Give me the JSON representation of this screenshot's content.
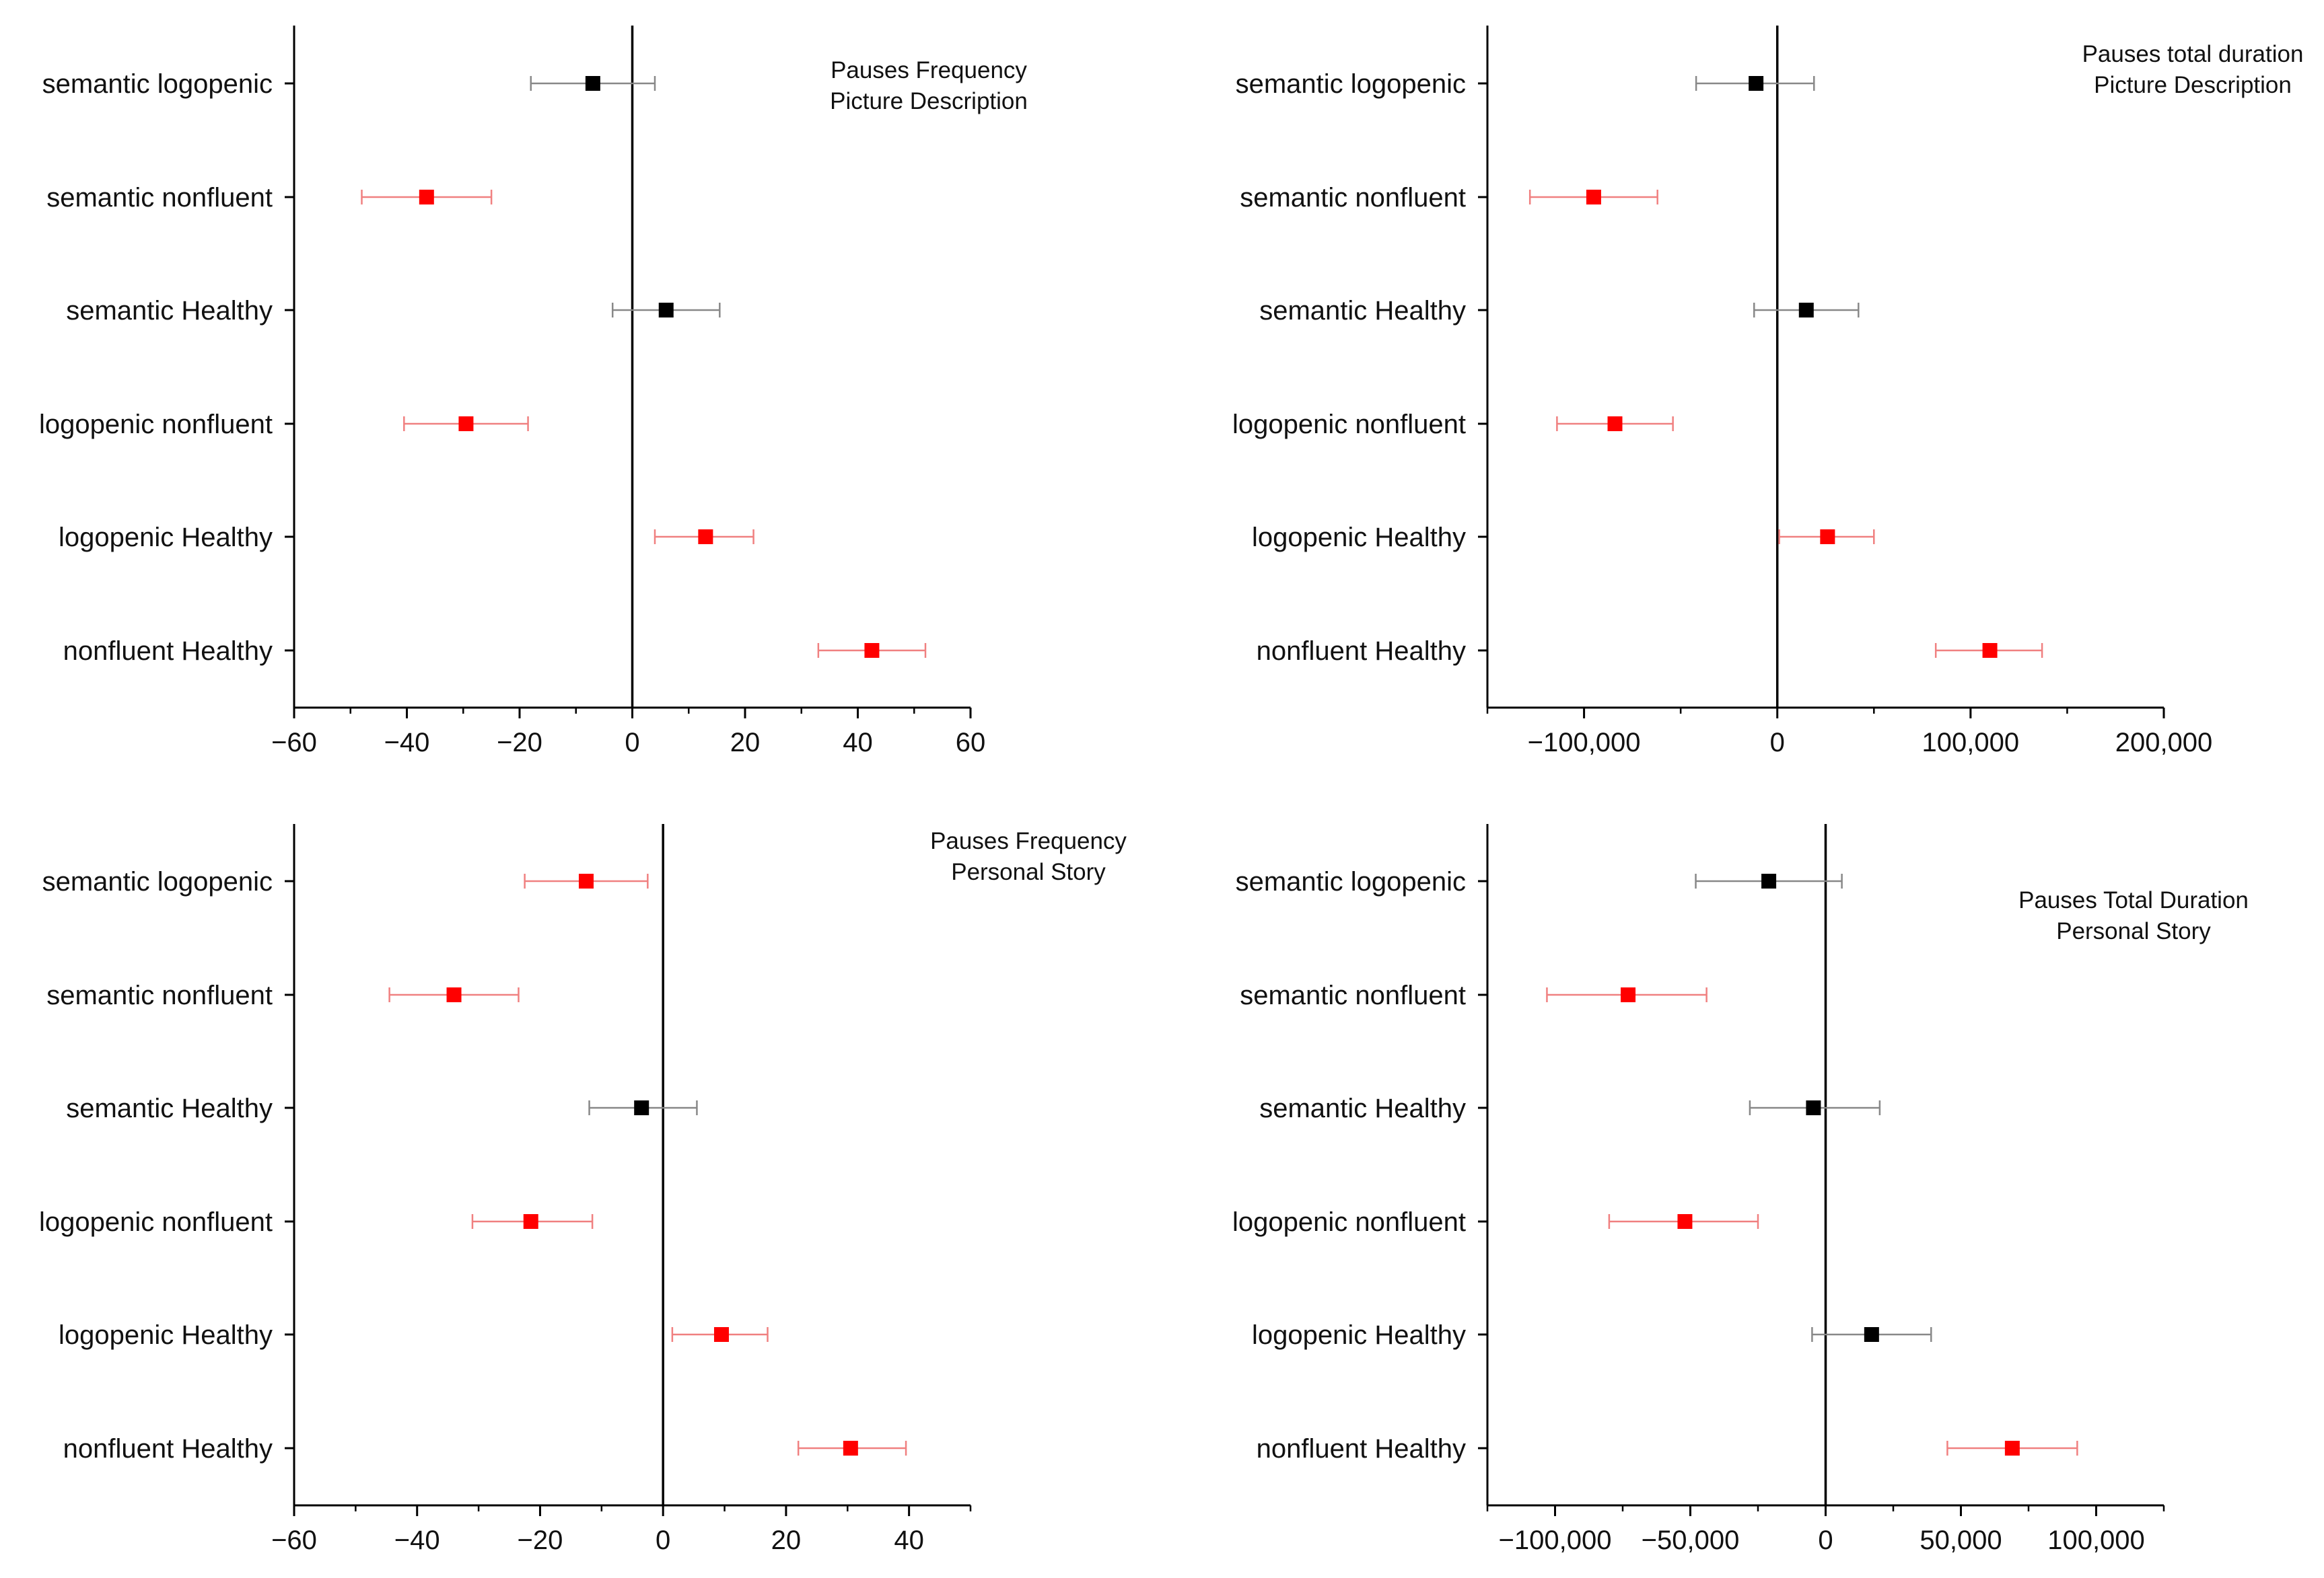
{
  "chart_data": [
    {
      "type": "forest",
      "title": [
        "Pauses Frequency",
        "Picture Description"
      ],
      "title_position": "top-right",
      "xlim": [
        -60,
        60
      ],
      "xticks": [
        -60,
        -40,
        -20,
        0,
        20,
        40,
        60
      ],
      "xtick_labels": [
        "−60",
        "−40",
        "−20",
        "0",
        "20",
        "40",
        "60"
      ],
      "reference_line": 0,
      "categories": [
        "semantic  logopenic",
        "semantic  nonfluent",
        "semantic  Healthy",
        "logopenic  nonfluent",
        "logopenic  Healthy",
        "nonfluent  Healthy"
      ],
      "estimates": [
        -7,
        -36.5,
        6,
        -29.5,
        13,
        42.5
      ],
      "ci_low": [
        -18,
        -48,
        -3.5,
        -40.5,
        4,
        33
      ],
      "ci_high": [
        4,
        -25,
        15.5,
        -18.5,
        21.5,
        52
      ],
      "significant": [
        false,
        true,
        false,
        true,
        true,
        true
      ]
    },
    {
      "type": "forest",
      "title": [
        "Pauses total duration",
        "Picture Description"
      ],
      "title_position": "top-right",
      "xlim": [
        -150000,
        200000
      ],
      "xticks": [
        -100000,
        0,
        100000,
        200000
      ],
      "xtick_labels": [
        "−100,000",
        "0",
        "100,000",
        "200,000"
      ],
      "reference_line": 0,
      "categories": [
        "semantic  logopenic",
        "semantic  nonfluent",
        "semantic  Healthy",
        "logopenic  nonfluent",
        "logopenic  Healthy",
        "nonfluent  Healthy"
      ],
      "estimates": [
        -11000,
        -95000,
        15000,
        -84000,
        26000,
        110000
      ],
      "ci_low": [
        -42000,
        -128000,
        -12000,
        -114000,
        1000,
        82000
      ],
      "ci_high": [
        19000,
        -62000,
        42000,
        -54000,
        50000,
        137000
      ],
      "significant": [
        false,
        true,
        false,
        true,
        true,
        true
      ]
    },
    {
      "type": "forest",
      "title": [
        "Pauses Frequency",
        "Personal Story"
      ],
      "title_position": "top-right",
      "xlim": [
        -60,
        50
      ],
      "xticks": [
        -60,
        -40,
        -20,
        0,
        20,
        40
      ],
      "xtick_labels": [
        "−60",
        "−40",
        "−20",
        "0",
        "20",
        "40"
      ],
      "reference_line": 0,
      "categories": [
        "semantic  logopenic",
        "semantic  nonfluent",
        "semantic  Healthy",
        "logopenic  nonfluent",
        "logopenic  Healthy",
        "nonfluent  Healthy"
      ],
      "estimates": [
        -12.5,
        -34,
        -3.5,
        -21.5,
        9.5,
        30.5
      ],
      "ci_low": [
        -22.5,
        -44.5,
        -12,
        -31,
        1.5,
        22
      ],
      "ci_high": [
        -2.5,
        -23.5,
        5.5,
        -11.5,
        17,
        39.5
      ],
      "significant": [
        true,
        true,
        false,
        true,
        true,
        true
      ]
    },
    {
      "type": "forest",
      "title": [
        "Pauses Total Duration",
        "Personal Story"
      ],
      "title_position": "top-right",
      "xlim": [
        -125000,
        125000
      ],
      "xticks": [
        -100000,
        -50000,
        0,
        50000,
        100000
      ],
      "xtick_labels": [
        "−100,000",
        "−50,000",
        "0",
        "50,000",
        "100,000"
      ],
      "reference_line": 0,
      "categories": [
        "semantic  logopenic",
        "semantic  nonfluent",
        "semantic  Healthy",
        "logopenic  nonfluent",
        "logopenic  Healthy",
        "nonfluent  Healthy"
      ],
      "estimates": [
        -21000,
        -73000,
        -4500,
        -52000,
        17000,
        69000
      ],
      "ci_low": [
        -48000,
        -103000,
        -28000,
        -80000,
        -5000,
        45000
      ],
      "ci_high": [
        6000,
        -44000,
        20000,
        -25000,
        39000,
        93000
      ],
      "significant": [
        false,
        true,
        false,
        true,
        false,
        true
      ]
    }
  ],
  "colors": {
    "significant": "#ff0000",
    "non_significant": "#000000",
    "significant_whisker": "#f08080",
    "non_significant_whisker": "#888888",
    "axis": "#000000"
  }
}
